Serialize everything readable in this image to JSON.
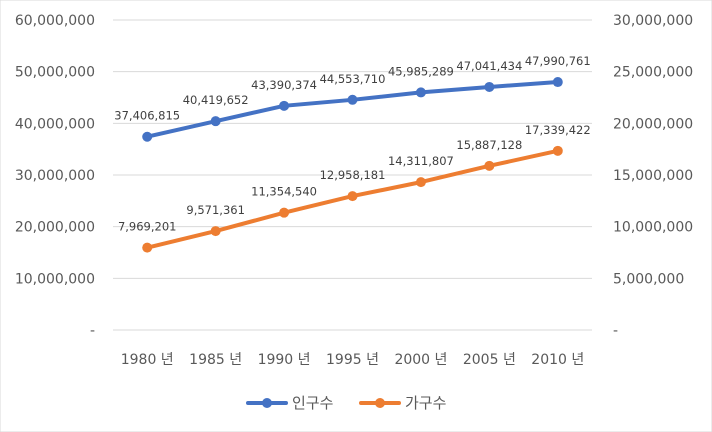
{
  "chart_data": {
    "type": "line",
    "categories": [
      "1980 년",
      "1985 년",
      "1990 년",
      "1995 년",
      "2000 년",
      "2005 년",
      "2010 년"
    ],
    "series": [
      {
        "name": "인구수",
        "axis": "left",
        "color": "#4472C4",
        "values": [
          37406815,
          40419652,
          43390374,
          44553710,
          45985289,
          47041434,
          47990761
        ],
        "labels": [
          "37,406,815",
          "40,419,652",
          "43,390,374",
          "44,553,710",
          "45,985,289",
          "47,041,434",
          "47,990,761"
        ]
      },
      {
        "name": "가구수",
        "axis": "right",
        "color": "#ED7D31",
        "values": [
          7969201,
          9571361,
          11354540,
          12958181,
          14311807,
          15887128,
          17339422
        ],
        "labels": [
          "7,969,201",
          "9,571,361",
          "11,354,540",
          "12,958,181",
          "14,311,807",
          "15,887,128",
          "17,339,422"
        ]
      }
    ],
    "y_left": {
      "range": [
        0,
        60000000
      ],
      "ticks": [
        0,
        10000000,
        20000000,
        30000000,
        40000000,
        50000000,
        60000000
      ],
      "tick_labels": [
        "-",
        "10,000,000",
        "20,000,000",
        "30,000,000",
        "40,000,000",
        "50,000,000",
        "60,000,000"
      ]
    },
    "y_right": {
      "range": [
        0,
        30000000
      ],
      "ticks": [
        0,
        5000000,
        10000000,
        15000000,
        20000000,
        25000000,
        30000000
      ],
      "tick_labels": [
        "-",
        "5,000,000",
        "10,000,000",
        "15,000,000",
        "20,000,000",
        "25,000,000",
        "30,000,000"
      ]
    },
    "grid": true,
    "legend_position": "bottom"
  }
}
